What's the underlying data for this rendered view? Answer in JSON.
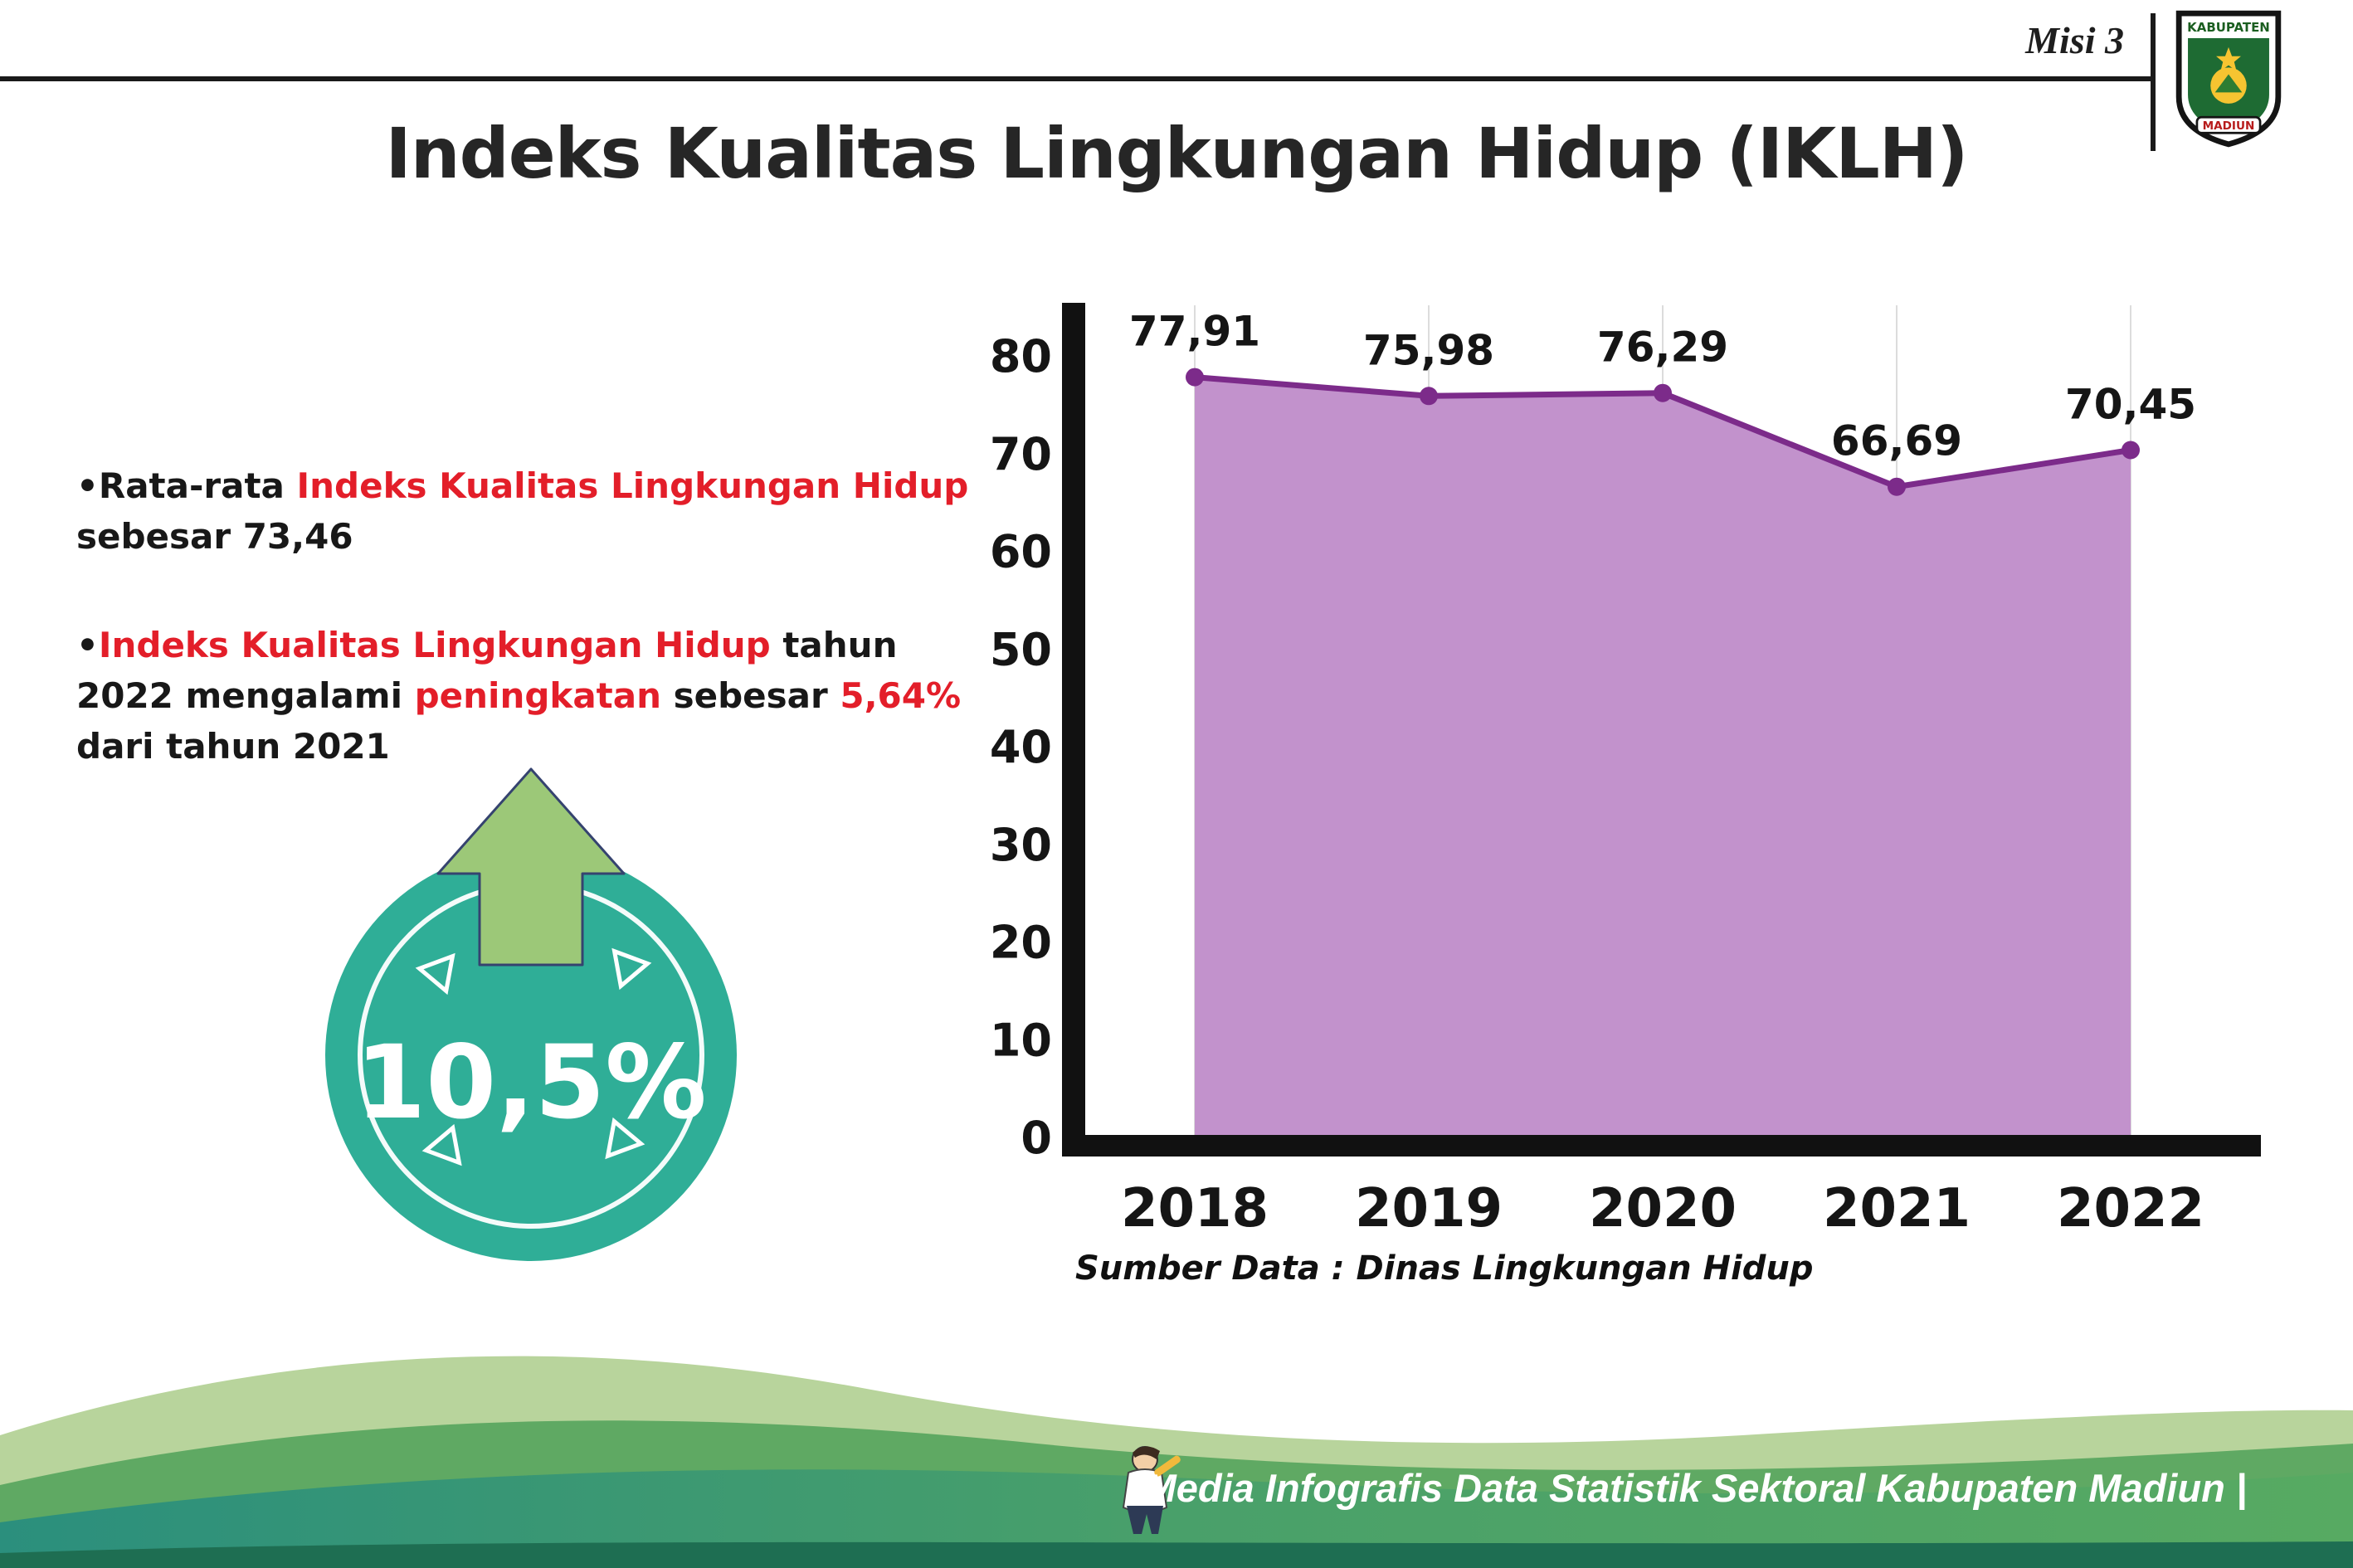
{
  "page": {
    "misi_label": "Misi 3",
    "title": "Indeks Kualitas Lingkungan Hidup (IKLH)"
  },
  "logo": {
    "top_text": "KABUPATEN",
    "bottom_text": "MADIUN"
  },
  "bullets": {
    "marker": "•",
    "b1": {
      "t1": "Rata-rata ",
      "red1": "Indeks Kualitas Lingkungan Hidup",
      "t2": " sebesar 73,46"
    },
    "b2": {
      "red1": "Indeks Kualitas Lingkungan Hidup",
      "t1": " tahun 2022 mengalami ",
      "red2": "peningkatan",
      "t2": " sebesar ",
      "red3": "5,64%",
      "t3": " dari tahun 2021"
    }
  },
  "badge": {
    "value": "10,5%"
  },
  "chart_data": {
    "type": "area",
    "title": "",
    "categories": [
      "2018",
      "2019",
      "2020",
      "2021",
      "2022"
    ],
    "values": [
      77.91,
      75.98,
      76.29,
      66.69,
      70.45
    ],
    "point_labels": [
      "77,91",
      "75,98",
      "76,29",
      "66,69",
      "70,45"
    ],
    "ylim": [
      0,
      80
    ],
    "yticks": [
      0,
      10,
      20,
      30,
      40,
      50,
      60,
      70,
      80
    ],
    "grid": "vertical",
    "legend": "none",
    "area_fill": "#c292cc",
    "line_color": "#7c2b8a",
    "source_note": "Sumber Data : Dinas Lingkungan Hidup"
  },
  "footer": {
    "credit": "Media Infografis Data Statistik Sektoral Kabupaten Madiun |"
  },
  "colors": {
    "accent_red": "#e31e29",
    "badge_teal": "#2fae97",
    "arrow_green": "#9cc878",
    "wave_light": "#b8d49c",
    "wave_mid": "#5fa963",
    "wave_teal": "#2b8f7d",
    "wave_dark": "#1e6e52"
  }
}
